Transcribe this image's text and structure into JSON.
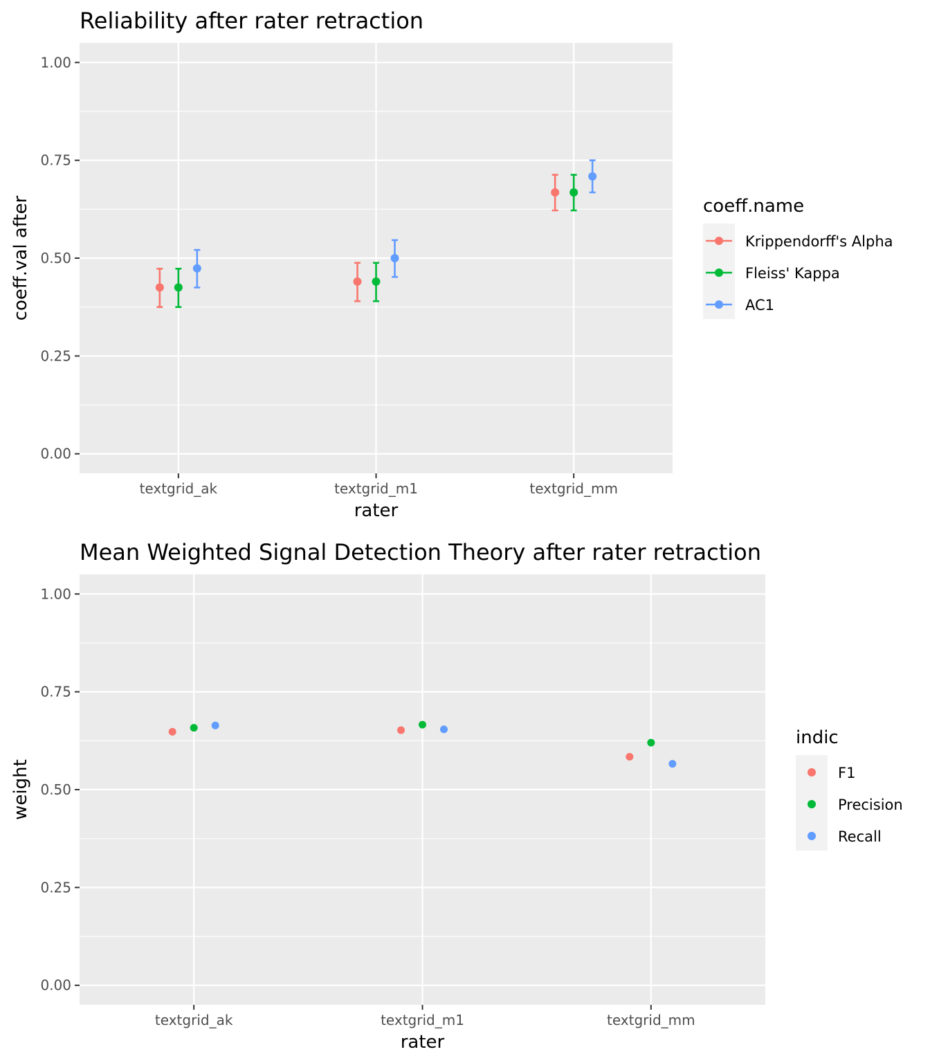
{
  "chart_data": [
    {
      "type": "scatter",
      "title": "Reliability after rater retraction",
      "xlabel": "rater",
      "ylabel": "coeff.val after",
      "ylim": [
        -0.05,
        1.05
      ],
      "yticks": [
        "0.00",
        "0.25",
        "0.50",
        "0.75",
        "1.00"
      ],
      "ytick_values": [
        0,
        0.25,
        0.5,
        0.75,
        1.0
      ],
      "categories": [
        "textgrid_ak",
        "textgrid_m1",
        "textgrid_mm"
      ],
      "error_bars": true,
      "grid": true,
      "legend": {
        "title": "coeff.name",
        "position": "right"
      },
      "series": [
        {
          "name": "Krippendorff's Alpha",
          "color": "#F8766D",
          "values": [
            0.425,
            0.44,
            0.668
          ],
          "lower": [
            0.375,
            0.39,
            0.622
          ],
          "upper": [
            0.473,
            0.488,
            0.713
          ]
        },
        {
          "name": "Fleiss' Kappa",
          "color": "#00BA38",
          "values": [
            0.425,
            0.44,
            0.668
          ],
          "lower": [
            0.375,
            0.39,
            0.622
          ],
          "upper": [
            0.473,
            0.488,
            0.713
          ]
        },
        {
          "name": "AC1",
          "color": "#619CFF",
          "values": [
            0.474,
            0.5,
            0.709
          ],
          "lower": [
            0.425,
            0.452,
            0.668
          ],
          "upper": [
            0.521,
            0.546,
            0.75
          ]
        }
      ]
    },
    {
      "type": "scatter",
      "title": "Mean Weighted Signal Detection Theory after rater retraction",
      "xlabel": "rater",
      "ylabel": "weight",
      "ylim": [
        -0.05,
        1.05
      ],
      "yticks": [
        "0.00",
        "0.25",
        "0.50",
        "0.75",
        "1.00"
      ],
      "ytick_values": [
        0,
        0.25,
        0.5,
        0.75,
        1.0
      ],
      "categories": [
        "textgrid_ak",
        "textgrid_m1",
        "textgrid_mm"
      ],
      "error_bars": false,
      "grid": true,
      "legend": {
        "title": "indic",
        "position": "right"
      },
      "series": [
        {
          "name": "F1",
          "color": "#F8766D",
          "values": [
            0.648,
            0.652,
            0.584
          ]
        },
        {
          "name": "Precision",
          "color": "#00BA38",
          "values": [
            0.658,
            0.666,
            0.62
          ]
        },
        {
          "name": "Recall",
          "color": "#619CFF",
          "values": [
            0.664,
            0.654,
            0.566
          ]
        }
      ]
    }
  ]
}
